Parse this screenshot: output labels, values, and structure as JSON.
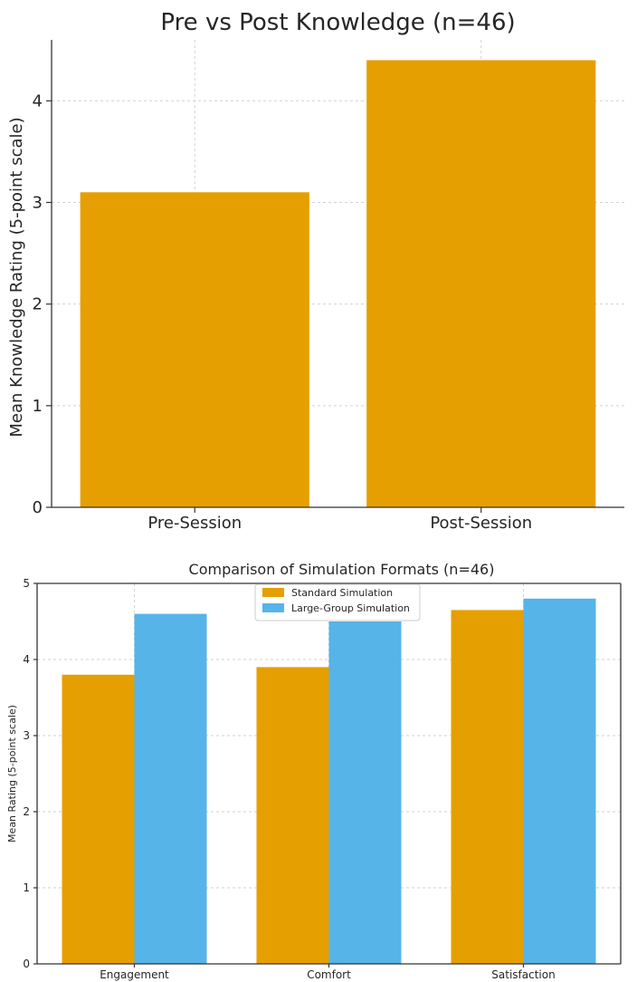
{
  "chart_data": [
    {
      "type": "bar",
      "title": "Pre vs Post Knowledge (n=46)",
      "xlabel": "",
      "ylabel": "Mean Knowledge Rating (5-point scale)",
      "categories": [
        "Pre-Session",
        "Post-Session"
      ],
      "values": [
        3.1,
        4.4
      ],
      "ylim": [
        0,
        4.6
      ],
      "yticks": [
        0,
        1,
        2,
        3,
        4
      ],
      "grid": true,
      "colors": [
        "#E69F00"
      ]
    },
    {
      "type": "bar",
      "title": "Comparison of Simulation Formats (n=46)",
      "xlabel": "",
      "ylabel": "Mean Rating (5-point scale)",
      "categories": [
        "Engagement",
        "Comfort",
        "Satisfaction"
      ],
      "series": [
        {
          "name": "Standard Simulation",
          "values": [
            3.8,
            3.9,
            4.65
          ],
          "color": "#E69F00"
        },
        {
          "name": "Large-Group Simulation",
          "values": [
            4.6,
            4.5,
            4.8
          ],
          "color": "#56B4E9"
        }
      ],
      "ylim": [
        0,
        5
      ],
      "yticks": [
        0,
        1,
        2,
        3,
        4,
        5
      ],
      "grid": true,
      "legend": "top-center"
    }
  ]
}
